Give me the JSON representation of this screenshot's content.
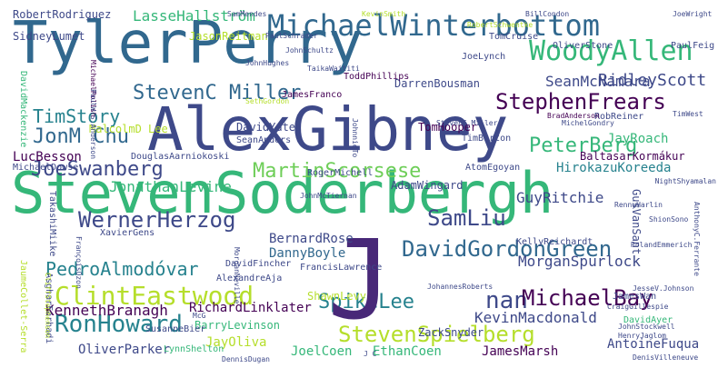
{
  "words": [
    {
      "text": "StevenSoderbergh",
      "color": "#35b779",
      "rotate": 0
    },
    {
      "text": "AlexGibney",
      "color": "#3e4989",
      "rotate": 0
    },
    {
      "text": "TylerPerry",
      "color": "#31688e",
      "rotate": 0
    },
    {
      "text": "MichaelWinterbottom",
      "color": "#31688e",
      "rotate": 0
    },
    {
      "text": "WoodyAllen",
      "color": "#35b779",
      "rotate": 0
    },
    {
      "text": "StephenFrears",
      "color": "#440154",
      "rotate": 0
    },
    {
      "text": "StevenC Miller",
      "color": "#31688e",
      "rotate": 0
    },
    {
      "text": "JonM Chu",
      "color": "#31688e",
      "rotate": 0
    },
    {
      "text": "TimStory",
      "color": "#26828e",
      "rotate": 0
    },
    {
      "text": "JoeSwanberg",
      "color": "#3e4989",
      "rotate": 0
    },
    {
      "text": "MartinScorsese",
      "color": "#6ece58",
      "rotate": 0
    },
    {
      "text": "PeterBerg",
      "color": "#35b779",
      "rotate": 0
    },
    {
      "text": "WernerHerzog",
      "color": "#3e4989",
      "rotate": 0
    },
    {
      "text": "SamLiu",
      "color": "#3e4989",
      "rotate": 0
    },
    {
      "text": "PedroAlmodóvar",
      "color": "#26828e",
      "rotate": 0
    },
    {
      "text": "ClintEastwood",
      "color": "#b5de2b",
      "rotate": 0
    },
    {
      "text": "DavidGordonGreen",
      "color": "#31688e",
      "rotate": 0
    },
    {
      "text": "nan",
      "color": "#3e4989",
      "rotate": 0
    },
    {
      "text": "MichaelBay",
      "color": "#440154",
      "rotate": 0
    },
    {
      "text": "SpikeLee",
      "color": "#26828e",
      "rotate": 0
    },
    {
      "text": "RonHoward",
      "color": "#26828e",
      "rotate": 0
    },
    {
      "text": "StevenSpielberg",
      "color": "#b5de2b",
      "rotate": 0
    },
    {
      "text": "J",
      "color": "#482878",
      "rotate": 0
    },
    {
      "text": "KennethBranagh",
      "color": "#440154",
      "rotate": 0
    },
    {
      "text": "RichardLinklater",
      "color": "#440154",
      "rotate": 0
    },
    {
      "text": "KevinMacdonald",
      "color": "#3e4989",
      "rotate": 0
    },
    {
      "text": "JoelCoen",
      "color": "#35b779",
      "rotate": 0
    },
    {
      "text": "EthanCoen",
      "color": "#35b779",
      "rotate": 0
    },
    {
      "text": "JayOliva",
      "color": "#b5de2b",
      "rotate": 0
    },
    {
      "text": "OliverParker",
      "color": "#3e4989",
      "rotate": 0
    },
    {
      "text": "JamesMarsh",
      "color": "#440154",
      "rotate": 0
    },
    {
      "text": "AntoineFuqua",
      "color": "#3e4989",
      "rotate": 0
    },
    {
      "text": "BarryLevinson",
      "color": "#35b779",
      "rotate": 0
    },
    {
      "text": "ZackSnyder",
      "color": "#3e4989",
      "rotate": 0
    },
    {
      "text": "MorganSpurlock",
      "color": "#3e4989",
      "rotate": 0
    },
    {
      "text": "HirokazuKoreeda",
      "color": "#26828e",
      "rotate": 0
    },
    {
      "text": "GuyRitchie",
      "color": "#3e4989",
      "rotate": 0
    },
    {
      "text": "AdamWingard",
      "color": "#3e4989",
      "rotate": 0
    },
    {
      "text": "BernardRose",
      "color": "#3e4989",
      "rotate": 0
    },
    {
      "text": "DannyBoyle",
      "color": "#31688e",
      "rotate": 0
    },
    {
      "text": "JonathanLevine",
      "color": "#35b779",
      "rotate": 0
    },
    {
      "text": "RidleyScott",
      "color": "#3e4989",
      "rotate": 0
    },
    {
      "text": "SeanMcNamara",
      "color": "#3e4989",
      "rotate": 0
    },
    {
      "text": "LasseHallström",
      "color": "#35b779",
      "rotate": 0
    },
    {
      "text": "RobertRodriguez",
      "color": "#3e4989",
      "rotate": 0
    },
    {
      "text": "SidneyLumet",
      "color": "#3e4989",
      "rotate": 0
    },
    {
      "text": "JasonReitman",
      "color": "#b5de2b",
      "rotate": 0
    },
    {
      "text": "DarrenBousman",
      "color": "#3e4989",
      "rotate": 0
    },
    {
      "text": "JamesFranco",
      "color": "#440154",
      "rotate": 0
    },
    {
      "text": "TomHooper",
      "color": "#440154",
      "rotate": 0
    },
    {
      "text": "JayRoach",
      "color": "#35b779",
      "rotate": 0
    },
    {
      "text": "BaltasarKormákur",
      "color": "#440154",
      "rotate": 0
    },
    {
      "text": "LucBesson",
      "color": "#440154",
      "rotate": 0
    },
    {
      "text": "MichaelDowse",
      "color": "#3e4989",
      "rotate": 0
    },
    {
      "text": "DavidYates",
      "color": "#3e4989",
      "rotate": 0
    },
    {
      "text": "SeanAnders",
      "color": "#3e4989",
      "rotate": 0
    },
    {
      "text": "RobReiner",
      "color": "#3e4989",
      "rotate": 0
    },
    {
      "text": "TimBurton",
      "color": "#3e4989",
      "rotate": 0
    },
    {
      "text": "AtomEgoyan",
      "color": "#3e4989",
      "rotate": 0
    },
    {
      "text": "RogerMichell",
      "color": "#3e4989",
      "rotate": 0
    },
    {
      "text": "KellyReichardt",
      "color": "#3e4989",
      "rotate": 0
    },
    {
      "text": "FrancisLawrence",
      "color": "#3e4989",
      "rotate": 0
    },
    {
      "text": "ShawnLevy",
      "color": "#b5de2b",
      "rotate": 0
    },
    {
      "text": "AlexandreAja",
      "color": "#3e4989",
      "rotate": 0
    },
    {
      "text": "XavierGens",
      "color": "#3e4989",
      "rotate": 0
    },
    {
      "text": "SusanneBier",
      "color": "#3e4989",
      "rotate": 0
    },
    {
      "text": "LynnShelton",
      "color": "#35b779",
      "rotate": 0
    },
    {
      "text": "JamesWan",
      "color": "#3e4989",
      "rotate": 0
    },
    {
      "text": "DavidAyer",
      "color": "#35b779",
      "rotate": 0
    },
    {
      "text": "JohannesRoberts",
      "color": "#3e4989",
      "rotate": 0
    },
    {
      "text": "TimWest",
      "color": "#3e4989",
      "rotate": 0
    },
    {
      "text": "TakashiMiike",
      "color": "#3e4989",
      "rotate": 90
    },
    {
      "text": "AsgharFarhadi",
      "color": "#3e4989",
      "rotate": 90
    },
    {
      "text": "DavidMackenzie",
      "color": "#35b779",
      "rotate": 90
    },
    {
      "text": "JaumeCollet-Serra",
      "color": "#b5de2b",
      "rotate": 90
    },
    {
      "text": "GusVanSant",
      "color": "#3e4989",
      "rotate": 90
    },
    {
      "text": "MalcolmD Lee",
      "color": "#b5de2b",
      "rotate": 0
    },
    {
      "text": "TomCruise",
      "color": "#3e4989",
      "rotate": 0
    },
    {
      "text": "JoeLynch",
      "color": "#3e4989",
      "rotate": 0
    },
    {
      "text": "JoeWright",
      "color": "#3e4989",
      "rotate": 0
    },
    {
      "text": "KevinSmith",
      "color": "#b5de2b",
      "rotate": 0
    },
    {
      "text": "BillCondon",
      "color": "#3e4989",
      "rotate": 0
    },
    {
      "text": "OliverStone",
      "color": "#3e4989",
      "rotate": 0
    },
    {
      "text": "PaulFeig",
      "color": "#3e4989",
      "rotate": 0
    },
    {
      "text": "TaikaWaititi",
      "color": "#3e4989",
      "rotate": 0
    },
    {
      "text": "SethGordon",
      "color": "#b5de2b",
      "rotate": 0
    },
    {
      "text": "ToddPhillips",
      "color": "#440154",
      "rotate": 0
    },
    {
      "text": "MichaelPolish",
      "color": "#440154",
      "rotate": 90
    },
    {
      "text": "PaulW.S.Anderson",
      "color": "#3e4989",
      "rotate": 90
    },
    {
      "text": "JohnnieTo",
      "color": "#3e4989",
      "rotate": 90
    },
    {
      "text": "FrançoisOzon",
      "color": "#3e4989",
      "rotate": 90
    },
    {
      "text": "CliffStephenson",
      "color": "#b5de2b",
      "rotate": 90
    },
    {
      "text": "RennyHarlin",
      "color": "#3e4989",
      "rotate": 0
    },
    {
      "text": "MichelGondry",
      "color": "#3e4989",
      "rotate": 0
    },
    {
      "text": "BradAnderson",
      "color": "#440154",
      "rotate": 0
    },
    {
      "text": "RolandEmmerich",
      "color": "#3e4989",
      "rotate": 0
    },
    {
      "text": "JesseV.Johnson",
      "color": "#3e4989",
      "rotate": 0
    },
    {
      "text": "CraigGillespie",
      "color": "#3e4989",
      "rotate": 0
    },
    {
      "text": "DenisVilleneuve",
      "color": "#3e4989",
      "rotate": 0
    },
    {
      "text": "HenryJaglom",
      "color": "#3e4989",
      "rotate": 0
    },
    {
      "text": "JohnStockwell",
      "color": "#3e4989",
      "rotate": 0
    },
    {
      "text": "SamMendes",
      "color": "#3e4989",
      "rotate": 0
    },
    {
      "text": "StevenC.Miller",
      "color": "#3e4989",
      "rotate": 0
    },
    {
      "text": "DouglasAarniokoski",
      "color": "#3e4989",
      "rotate": 0
    },
    {
      "text": "NightShyamalan",
      "color": "#3e4989",
      "rotate": 0
    },
    {
      "text": "AnthonyC.Ferrante",
      "color": "#3e4989",
      "rotate": 90
    },
    {
      "text": "MorganNeville",
      "color": "#3e4989",
      "rotate": 90
    },
    {
      "text": "McG",
      "color": "#3e4989",
      "rotate": 0
    },
    {
      "text": "DennisDugan",
      "color": "#3e4989",
      "rotate": 0
    },
    {
      "text": "ShionSono",
      "color": "#3e4989",
      "rotate": 0
    },
    {
      "text": "DavidFincher",
      "color": "#3e4989",
      "rotate": 0
    },
    {
      "text": "RobertSchwentke",
      "color": "#b5de2b",
      "rotate": 0
    },
    {
      "text": "JohnSchultz",
      "color": "#3e4989",
      "rotate": 0
    },
    {
      "text": "JohnHughes",
      "color": "#3e4989",
      "rotate": 0
    },
    {
      "text": "PaulSchrader",
      "color": "#3e4989",
      "rotate": 0
    },
    {
      "text": "JohnMcTiernan",
      "color": "#3e4989",
      "rotate": 0
    },
    {
      "text": "J C",
      "color": "#3e4989",
      "rotate": 0
    },
    {
      "text": "GavinO'Connor",
      "color": "#3e4989",
      "rotate": 0
    }
  ]
}
